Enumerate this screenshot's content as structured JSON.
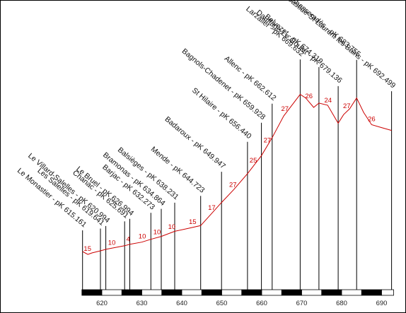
{
  "chart_data": {
    "type": "line",
    "title": "",
    "xlabel": "",
    "ylabel": "",
    "xlim": [
      610,
      690
    ],
    "xticks": [
      620,
      630,
      640,
      650,
      660,
      670,
      680,
      690
    ],
    "grid": false,
    "colors": {
      "profile": "#cc0000",
      "grade": "#cc0000",
      "ink": "#000000"
    },
    "stations": [
      {
        "name": "Le Monastier - pK 615.161",
        "pk": 615.161
      },
      {
        "name": "Les Salelles - pK 619.641",
        "pk": 619.641
      },
      {
        "name": "Le Villard-Salelles - pK 620.994",
        "pk": 620.994
      },
      {
        "name": "Chanac - pK 625.691",
        "pk": 625.691
      },
      {
        "name": "Le Bruel - pK 626.994",
        "pk": 626.994
      },
      {
        "name": "Barjac - pK 632.273",
        "pk": 632.273
      },
      {
        "name": "Bramonas - pK 634.864",
        "pk": 634.864
      },
      {
        "name": "Balsièges - pK 638.231",
        "pk": 638.231
      },
      {
        "name": "Mende - pK 644.723",
        "pk": 644.723
      },
      {
        "name": "Badaroux - pK 649.947",
        "pk": 649.947
      },
      {
        "name": "St Hilaire - pK 656.440",
        "pk": 656.44
      },
      {
        "name": "Bagnols-Chadenet - pK 659.928",
        "pk": 659.928
      },
      {
        "name": "Allenc - pK 662.612",
        "pk": 662.612
      },
      {
        "name": "Larzalier - pK 669.632",
        "pk": 669.632
      },
      {
        "name": "Belvezet - pK 674.319",
        "pk": 674.319
      },
      {
        "name": "Dauffage-Le Goulet - pK 679.136",
        "pk": 679.136
      },
      {
        "name": "Chasseradès - pK 683.755",
        "pk": 683.755
      },
      {
        "name": "La Bastide-St Laurent les Bains - pK 692.499",
        "pk": 692.499
      }
    ],
    "profile": {
      "x": [
        615.161,
        616.5,
        617.5,
        619.641,
        620.994,
        625.691,
        627.0,
        630.0,
        632.273,
        634.864,
        638.231,
        641.5,
        644.723,
        647.5,
        649.947,
        653.0,
        656.44,
        659.928,
        662.612,
        665.5,
        669.632,
        671.0,
        673.0,
        674.319,
        676.5,
        679.136,
        680.5,
        682.0,
        683.755,
        685.5,
        687.5,
        690.0,
        692.499
      ],
      "elevation": [
        962,
        958,
        960,
        963,
        965,
        970,
        972,
        975,
        979,
        983,
        990,
        994,
        998,
        1015,
        1030,
        1048,
        1070,
        1095,
        1120,
        1150,
        1180,
        1175,
        1162,
        1168,
        1165,
        1140,
        1152,
        1160,
        1175,
        1155,
        1138,
        1134,
        1130
      ]
    },
    "grades": [
      {
        "value": "15",
        "pk": 616.4
      },
      {
        "value": "10",
        "pk": 622.5
      },
      {
        "value": "4",
        "pk": 626.6
      },
      {
        "value": "10",
        "pk": 630.1
      },
      {
        "value": "10",
        "pk": 633.8
      },
      {
        "value": "10",
        "pk": 637.5
      },
      {
        "value": "15",
        "pk": 642.7
      },
      {
        "value": "17",
        "pk": 647.5
      },
      {
        "value": "27",
        "pk": 652.8
      },
      {
        "value": "25",
        "pk": 657.9
      },
      {
        "value": "27",
        "pk": 661.4
      },
      {
        "value": "27",
        "pk": 665.8
      },
      {
        "value": "26",
        "pk": 671.8
      },
      {
        "value": "24",
        "pk": 676.6
      },
      {
        "value": "27",
        "pk": 681.3
      },
      {
        "value": "26",
        "pk": 687.5
      }
    ]
  }
}
